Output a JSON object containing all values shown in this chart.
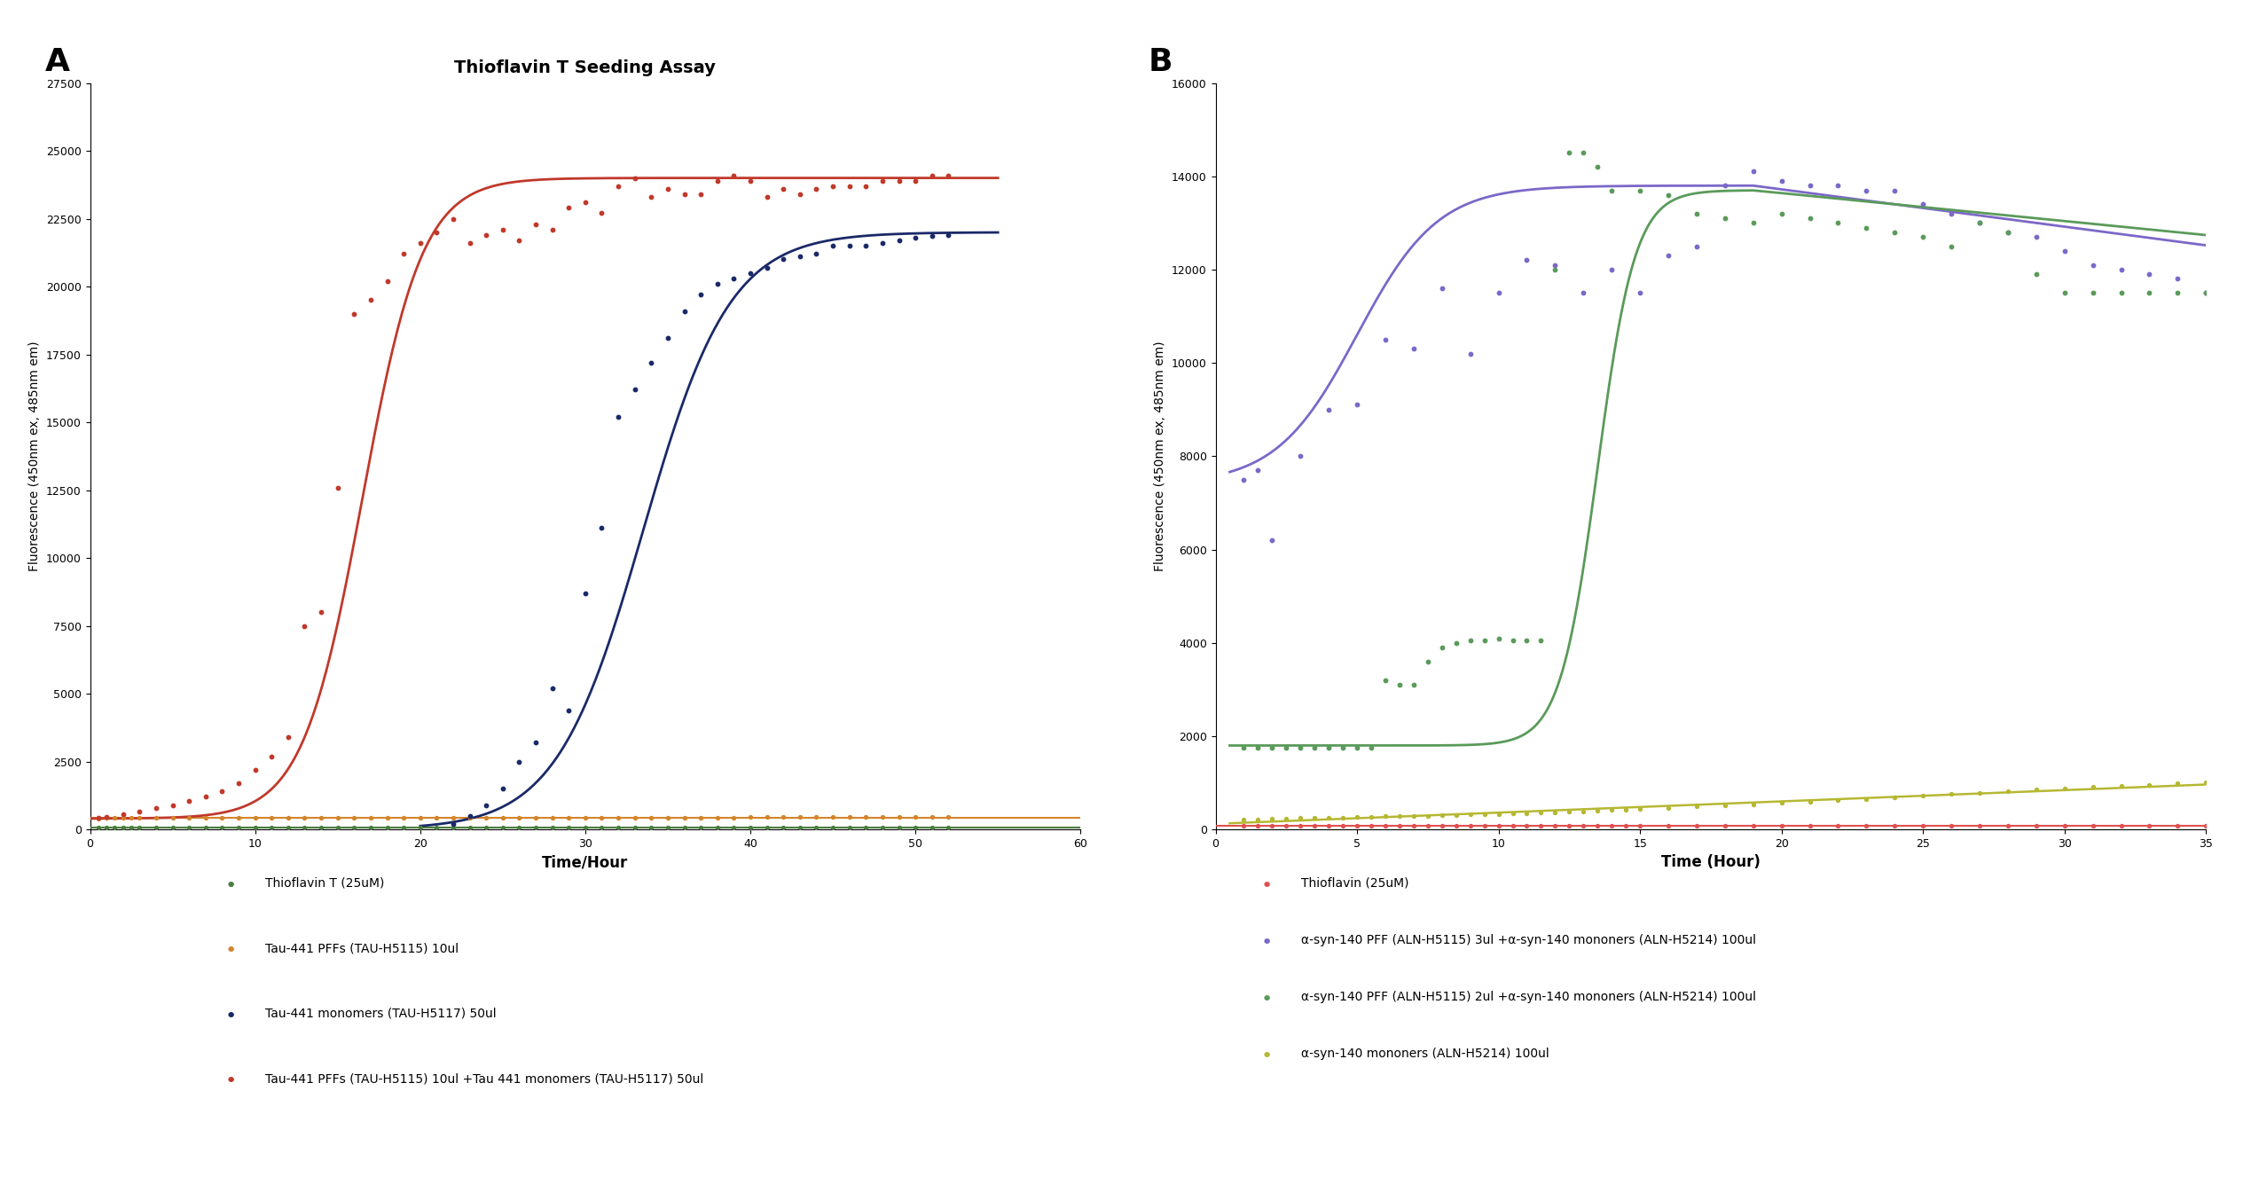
{
  "panel_A": {
    "title": "Thioflavin T Seeding Assay",
    "xlabel": "Time/Hour",
    "ylabel": "Fluorescence (450nm ex, 485nm em)",
    "xlim": [
      0,
      60
    ],
    "ylim": [
      0,
      27500
    ],
    "yticks": [
      0,
      2500,
      5000,
      7500,
      10000,
      12500,
      15000,
      17500,
      20000,
      22500,
      25000,
      27500
    ],
    "xticks": [
      0,
      10,
      20,
      30,
      40,
      50,
      60
    ],
    "series": [
      {
        "label": "Thioflavin T (25uM)",
        "color": "#4a7c3f",
        "scatter_x": [
          0.5,
          1,
          1.5,
          2,
          2.5,
          3,
          4,
          5,
          6,
          7,
          8,
          9,
          10,
          11,
          12,
          13,
          14,
          15,
          16,
          17,
          18,
          19,
          20,
          21,
          22,
          23,
          24,
          25,
          26,
          27,
          28,
          29,
          30,
          31,
          32,
          33,
          34,
          35,
          36,
          37,
          38,
          39,
          40,
          41,
          42,
          43,
          44,
          45,
          46,
          47,
          48,
          49,
          50,
          51,
          52
        ],
        "scatter_y": [
          60,
          60,
          60,
          60,
          60,
          60,
          60,
          65,
          65,
          65,
          65,
          65,
          65,
          65,
          65,
          65,
          65,
          70,
          65,
          65,
          70,
          65,
          65,
          70,
          65,
          65,
          70,
          65,
          70,
          70,
          70,
          70,
          70,
          70,
          70,
          70,
          70,
          70,
          70,
          70,
          70,
          70,
          70,
          70,
          75,
          75,
          75,
          75,
          75,
          75,
          75,
          75,
          75,
          80,
          80
        ],
        "flat_level": 68,
        "type": "flat"
      },
      {
        "label": "Tau-441 PFFs (TAU-H5115) 10ul",
        "color": "#d4842a",
        "scatter_x": [
          0.5,
          1,
          1.5,
          2,
          2.5,
          3,
          4,
          5,
          6,
          7,
          8,
          9,
          10,
          11,
          12,
          13,
          14,
          15,
          16,
          17,
          18,
          19,
          20,
          21,
          22,
          23,
          24,
          25,
          26,
          27,
          28,
          29,
          30,
          31,
          32,
          33,
          34,
          35,
          36,
          37,
          38,
          39,
          40,
          41,
          42,
          43,
          44,
          45,
          46,
          47,
          48,
          49,
          50,
          51,
          52
        ],
        "scatter_y": [
          410,
          420,
          430,
          430,
          420,
          420,
          420,
          425,
          420,
          425,
          425,
          425,
          425,
          430,
          430,
          430,
          430,
          430,
          430,
          430,
          430,
          435,
          430,
          430,
          435,
          435,
          435,
          435,
          440,
          440,
          440,
          440,
          440,
          440,
          440,
          440,
          445,
          445,
          445,
          445,
          445,
          445,
          450,
          450,
          450,
          450,
          450,
          455,
          455,
          455,
          460,
          460,
          460,
          465,
          465
        ],
        "flat_level": 440,
        "type": "flat"
      },
      {
        "label": "Tau-441 monomers (TAU-H5117) 50ul",
        "color": "#1a2968",
        "scatter_x": [
          22,
          23,
          24,
          25,
          26,
          27,
          28,
          29,
          30,
          31,
          32,
          33,
          34,
          35,
          36,
          37,
          38,
          39,
          40,
          41,
          42,
          43,
          44,
          45,
          46,
          47,
          48,
          49,
          50,
          51,
          52
        ],
        "scatter_y": [
          200,
          500,
          900,
          1500,
          2500,
          3200,
          5200,
          4400,
          8700,
          11100,
          15200,
          16200,
          17200,
          18100,
          19100,
          19700,
          20100,
          20300,
          20500,
          20700,
          21000,
          21100,
          21200,
          21500,
          21500,
          21500,
          21600,
          21700,
          21800,
          21850,
          21900
        ],
        "sigmoid_mid": 33.5,
        "sigmoid_slope": 0.38,
        "sigmoid_max": 22000,
        "sigmoid_min": 0,
        "sigmoid_x_start": 20,
        "sigmoid_x_end": 55,
        "type": "sigmoid"
      },
      {
        "label": "Tau-441 PFFs (TAU-H5115) 10ul +Tau 441 monomers (TAU-H5117) 50ul",
        "color": "#c0392b",
        "scatter_x": [
          0.5,
          1,
          2,
          3,
          4,
          5,
          6,
          7,
          8,
          9,
          10,
          11,
          12,
          13,
          14,
          15,
          16,
          17,
          18,
          19,
          20,
          21,
          22,
          23,
          24,
          25,
          26,
          27,
          28,
          29,
          30,
          31,
          32,
          33,
          34,
          35,
          36,
          37,
          38,
          39,
          40,
          41,
          42,
          43,
          44,
          45,
          46,
          47,
          48,
          49,
          50,
          51,
          52
        ],
        "scatter_y": [
          430,
          480,
          550,
          650,
          780,
          900,
          1050,
          1200,
          1400,
          1700,
          2200,
          2700,
          3400,
          7500,
          8000,
          12600,
          19000,
          19500,
          20200,
          21200,
          21600,
          22000,
          22500,
          21600,
          21900,
          22100,
          21700,
          22300,
          22100,
          22900,
          23100,
          22700,
          23700,
          24000,
          23300,
          23600,
          23400,
          23400,
          23900,
          24100,
          23900,
          23300,
          23600,
          23400,
          23600,
          23700,
          23700,
          23700,
          23900,
          23900,
          23900,
          24100,
          24100
        ],
        "sigmoid_mid": 16.5,
        "sigmoid_slope": 0.55,
        "sigmoid_max": 24000,
        "sigmoid_min": 400,
        "sigmoid_x_start": 0,
        "sigmoid_x_end": 55,
        "type": "sigmoid"
      }
    ],
    "legend_items": [
      {
        "label": "Thioflavin T (25uM)",
        "color": "#4a7c3f"
      },
      {
        "label": "Tau-441 PFFs (TAU-H5115) 10ul",
        "color": "#d4842a"
      },
      {
        "label": "Tau-441 monomers (TAU-H5117) 50ul",
        "color": "#1a2968"
      },
      {
        "label": "Tau-441 PFFs (TAU-H5115) 10ul +Tau 441 monomers (TAU-H5117) 50ul",
        "color": "#c0392b"
      }
    ]
  },
  "panel_B": {
    "xlabel": "Time (Hour)",
    "ylabel": "Fluorescence (450nm ex, 485nm em)",
    "xlim": [
      0,
      35
    ],
    "ylim": [
      0,
      16000
    ],
    "yticks": [
      0,
      2000,
      4000,
      6000,
      8000,
      10000,
      12000,
      14000,
      16000
    ],
    "xticks": [
      0,
      5,
      10,
      15,
      20,
      25,
      30,
      35
    ],
    "series": [
      {
        "label": "Thioflavin (25uM)",
        "color": "#e05050",
        "scatter_x": [
          1,
          1.5,
          2,
          2.5,
          3,
          3.5,
          4,
          4.5,
          5,
          5.5,
          6,
          6.5,
          7,
          7.5,
          8,
          8.5,
          9,
          9.5,
          10,
          10.5,
          11,
          11.5,
          12,
          12.5,
          13,
          13.5,
          14,
          14.5,
          15,
          16,
          17,
          18,
          19,
          20,
          21,
          22,
          23,
          24,
          25,
          26,
          27,
          28,
          29,
          30,
          31,
          32,
          33,
          34,
          35
        ],
        "scatter_y": [
          80,
          80,
          80,
          80,
          80,
          80,
          80,
          80,
          80,
          80,
          80,
          80,
          80,
          80,
          80,
          80,
          80,
          80,
          80,
          80,
          80,
          80,
          80,
          80,
          80,
          80,
          80,
          80,
          80,
          80,
          80,
          80,
          80,
          80,
          80,
          80,
          80,
          80,
          80,
          80,
          80,
          80,
          80,
          80,
          80,
          80,
          80,
          80,
          80
        ],
        "flat_level": 80,
        "type": "flat"
      },
      {
        "label": "α-syn-140 PFF (ALN-H5115) 3ul +α-syn-140 mononers (ALN-H5214) 100ul",
        "color": "#7b68c8",
        "scatter_x": [
          1,
          1.5,
          2,
          3,
          4,
          5,
          6,
          7,
          8,
          9,
          10,
          11,
          12,
          13,
          14,
          15,
          16,
          17,
          18,
          19,
          20,
          21,
          22,
          23,
          24,
          25,
          26,
          27,
          28,
          29,
          30,
          31,
          32,
          33,
          34,
          35
        ],
        "scatter_y": [
          7500,
          7700,
          6200,
          8000,
          9000,
          9100,
          10500,
          10300,
          11600,
          10200,
          11500,
          12200,
          12100,
          11500,
          12000,
          11500,
          12300,
          12500,
          13800,
          14100,
          13900,
          13800,
          13800,
          13700,
          13700,
          13400,
          13200,
          13000,
          12800,
          12700,
          12400,
          12100,
          12000,
          11900,
          11800,
          11500
        ],
        "type": "custom_purple"
      },
      {
        "label": "α-syn-140 PFF (ALN-H5115) 2ul +α-syn-140 mononers (ALN-H5214) 100ul",
        "color": "#5a9a5a",
        "scatter_x": [
          1,
          1.5,
          2,
          2.5,
          3,
          3.5,
          4,
          4.5,
          5,
          5.5,
          6,
          6.5,
          7,
          7.5,
          8,
          8.5,
          9,
          9.5,
          10,
          10.5,
          11,
          11.5,
          12,
          12.5,
          13,
          13.5,
          14,
          15,
          16,
          17,
          18,
          19,
          20,
          21,
          22,
          23,
          24,
          25,
          26,
          27,
          28,
          29,
          30,
          31,
          32,
          33,
          34,
          35
        ],
        "scatter_y": [
          1750,
          1750,
          1750,
          1750,
          1750,
          1750,
          1750,
          1750,
          1750,
          1750,
          3200,
          3100,
          3100,
          3600,
          3900,
          4000,
          4050,
          4050,
          4100,
          4050,
          4050,
          4050,
          12000,
          14500,
          14500,
          14200,
          13700,
          13700,
          13600,
          13200,
          13100,
          13000,
          13200,
          13100,
          13000,
          12900,
          12800,
          12700,
          12500,
          13000,
          12800,
          11900,
          11500,
          11500,
          11500,
          11500,
          11500,
          11500
        ],
        "sigmoid_mid": 13.5,
        "sigmoid_slope": 1.5,
        "sigmoid_max": 13700,
        "sigmoid_min": 1800,
        "sigmoid_x_start": 0,
        "sigmoid_x_end": 35,
        "type": "sigmoid_decay"
      },
      {
        "label": "α-syn-140 mononers (ALN-H5214) 100ul",
        "color": "#b5b832",
        "scatter_x": [
          1,
          1.5,
          2,
          2.5,
          3,
          3.5,
          4,
          4.5,
          5,
          5.5,
          6,
          6.5,
          7,
          7.5,
          8,
          8.5,
          9,
          9.5,
          10,
          10.5,
          11,
          11.5,
          12,
          12.5,
          13,
          13.5,
          14,
          14.5,
          15,
          16,
          17,
          18,
          19,
          20,
          21,
          22,
          23,
          24,
          25,
          26,
          27,
          28,
          29,
          30,
          31,
          32,
          33,
          34,
          35
        ],
        "scatter_y": [
          220,
          220,
          230,
          240,
          245,
          250,
          255,
          260,
          265,
          270,
          280,
          285,
          290,
          295,
          305,
          310,
          320,
          325,
          335,
          340,
          350,
          360,
          370,
          380,
          390,
          400,
          415,
          425,
          440,
          460,
          490,
          510,
          540,
          565,
          595,
          625,
          655,
          685,
          720,
          755,
          790,
          820,
          850,
          880,
          910,
          940,
          960,
          985,
          1010
        ],
        "type": "linear"
      }
    ],
    "legend_items": [
      {
        "label": "Thioflavin (25uM)",
        "color": "#e05050"
      },
      {
        "label": "α-syn-140 PFF (ALN-H5115) 3ul +α-syn-140 mononers (ALN-H5214) 100ul",
        "color": "#7b68c8"
      },
      {
        "label": "α-syn-140 PFF (ALN-H5115) 2ul +α-syn-140 mononers (ALN-H5214) 100ul",
        "color": "#5a9a5a"
      },
      {
        "label": "α-syn-140 mononers (ALN-H5214) 100ul",
        "color": "#b5b832"
      }
    ]
  },
  "background_color": "#ffffff"
}
